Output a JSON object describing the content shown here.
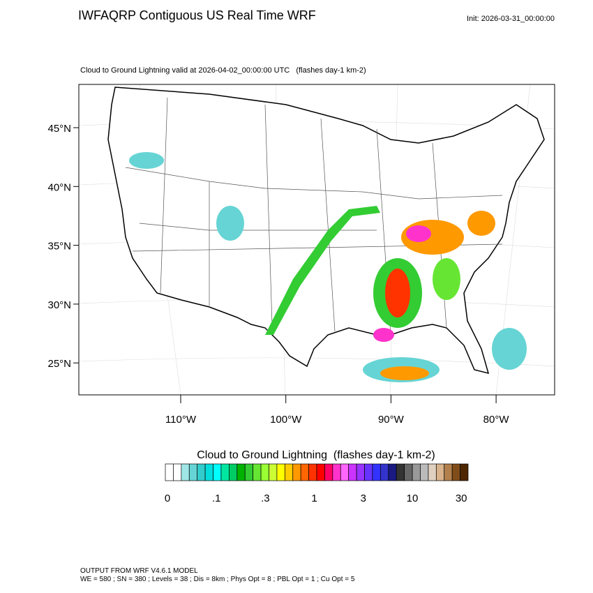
{
  "header": {
    "title": "IWFAQRP Contiguous US Real Time WRF",
    "init": "Init: 2026-03-31_00:00:00"
  },
  "map": {
    "subtitle": "Cloud to Ground Lightning valid at 2026-04-02_00:00:00 UTC   (flashes day-1 km-2)",
    "lat_labels": [
      "45°N",
      "40°N",
      "35°N",
      "30°N",
      "25°N"
    ],
    "lon_labels": [
      "110°W",
      "100°W",
      "90°W",
      "80°W"
    ]
  },
  "colorbar": {
    "title": "Cloud to Ground Lightning  (flashes day-1 km-2)",
    "colors": [
      "#ffffff",
      "#ffffff",
      "#a0e6e6",
      "#66d4d4",
      "#33cccc",
      "#00dddd",
      "#00ffff",
      "#00e6a0",
      "#00cc66",
      "#00b300",
      "#33cc33",
      "#66e633",
      "#99ff33",
      "#ccff33",
      "#ffff00",
      "#ffcc00",
      "#ff9900",
      "#ff6600",
      "#ff3300",
      "#ff0000",
      "#ff0066",
      "#ff33cc",
      "#ff66ff",
      "#cc33ff",
      "#9933ff",
      "#6633ff",
      "#3333ff",
      "#3333cc",
      "#1a1a80",
      "#333333",
      "#666666",
      "#999999",
      "#bbbbbb",
      "#e0d0c0",
      "#d9b38c",
      "#b3804d",
      "#804d1a",
      "#4d2600"
    ],
    "labels": [
      "0",
      ".1",
      ".3",
      "1",
      "3",
      "10",
      "30"
    ]
  },
  "footer": {
    "lines": [
      "OUTPUT FROM WRF V4.6.1 MODEL",
      "WE = 580 ; SN = 380 ; Levels = 38 ; Dis = 8km ; Phys Opt = 8 ; PBL Opt = 1 ; Cu Opt = 5"
    ]
  }
}
